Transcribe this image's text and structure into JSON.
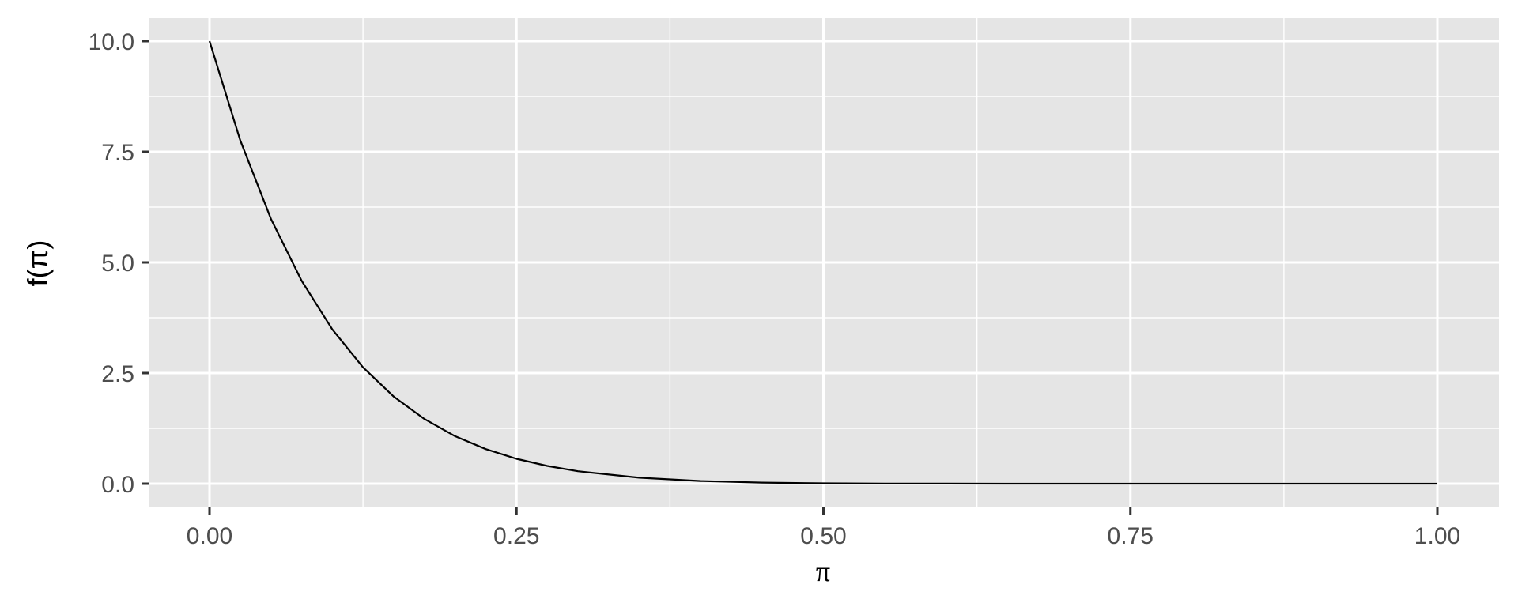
{
  "chart_data": {
    "type": "line",
    "xlabel": "π",
    "ylabel": "f(π)",
    "xlim": [
      0,
      1
    ],
    "ylim": [
      0,
      10
    ],
    "x_ticks": [
      0,
      0.25,
      0.5,
      0.75,
      1
    ],
    "x_tick_labels": [
      "0.00",
      "0.25",
      "0.50",
      "0.75",
      "1.00"
    ],
    "y_ticks": [
      0,
      2.5,
      5,
      7.5,
      10
    ],
    "y_tick_labels": [
      "0.0",
      "2.5",
      "5.0",
      "7.5",
      "10.0"
    ],
    "grid": true,
    "series": [
      {
        "x": [
          0,
          0.025,
          0.05,
          0.075,
          0.1,
          0.125,
          0.15,
          0.175,
          0.2,
          0.225,
          0.25,
          0.275,
          0.3,
          0.35,
          0.4,
          0.45,
          0.5,
          0.55,
          0.6,
          0.65,
          0.7,
          0.75,
          0.8,
          0.85,
          0.9,
          0.95,
          1
        ],
        "y": [
          10,
          7.763,
          5.987,
          4.585,
          3.487,
          2.631,
          1.969,
          1.462,
          1.074,
          0.782,
          0.563,
          0.401,
          0.282,
          0.135,
          0.06,
          0.025,
          0.0098,
          0.0034,
          0.001,
          0.0003,
          0.0001,
          0.0,
          0,
          0,
          0,
          0,
          0
        ],
        "color": "#000000"
      }
    ]
  },
  "colors": {
    "panel_background": "#e5e5e5",
    "grid_line": "#ffffff",
    "axis_tick": "#333333",
    "tick_label": "#4d4d4d"
  }
}
